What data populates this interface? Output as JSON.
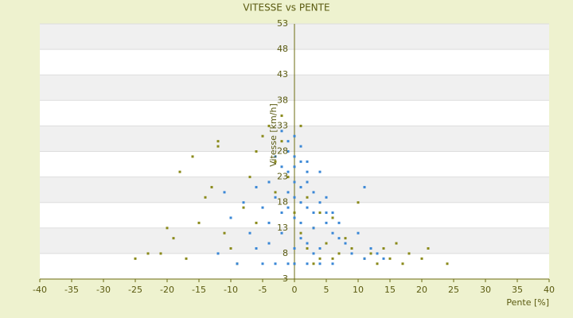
{
  "chart_data": {
    "type": "scatter",
    "title": "VITESSE vs PENTE",
    "x_label": "Pente [%]",
    "y_label": "Vitesse [km/h]",
    "xlim": [
      -40,
      40
    ],
    "xticks": [
      -40,
      -35,
      -30,
      -25,
      -20,
      -15,
      -10,
      -5,
      0,
      5,
      10,
      15,
      20,
      25,
      30,
      35,
      40
    ],
    "ylim": [
      3,
      53
    ],
    "yticks": [
      3,
      8,
      13,
      18,
      23,
      28,
      33,
      38,
      43,
      48,
      53
    ],
    "grid": true,
    "series": [
      {
        "color": "#8a8a1a",
        "x": [
          -25,
          -23,
          -19,
          -18,
          -16,
          -12,
          -13,
          -15,
          -14,
          -11,
          -10,
          -8,
          -6,
          -5,
          -4,
          -3,
          -2,
          -1,
          0,
          1,
          2,
          3,
          4,
          5,
          6,
          7,
          8,
          9,
          10,
          11,
          12,
          14,
          15,
          16,
          18,
          20,
          21,
          24,
          -17,
          -21,
          -9,
          -7,
          -3,
          0,
          3,
          6,
          -12,
          -6,
          2,
          4,
          -20,
          13,
          17,
          1,
          -2
        ],
        "values": [
          7,
          8,
          11,
          24,
          27,
          29,
          21,
          14,
          19,
          12,
          9,
          17,
          28,
          31,
          33,
          26,
          30,
          23,
          16,
          12,
          9,
          13,
          7,
          10,
          15,
          8,
          11,
          9,
          18,
          7,
          8,
          9,
          7,
          10,
          8,
          7,
          9,
          6,
          7,
          8,
          6,
          23,
          20,
          6,
          6,
          7,
          30,
          14,
          19,
          16,
          13,
          6,
          6,
          33,
          35
        ]
      },
      {
        "color": "#3a87d6",
        "x": [
          -1,
          0,
          1,
          -2,
          2,
          0,
          1,
          3,
          -1,
          4,
          2,
          5,
          0,
          -3,
          -4,
          1,
          3,
          6,
          7,
          -5,
          -6,
          2,
          0,
          4,
          8,
          -2,
          -1,
          0,
          1,
          -3,
          -8,
          -10,
          -12,
          -7,
          9,
          11,
          12,
          13,
          -9,
          -5,
          -3,
          -1,
          0,
          2,
          4,
          6,
          -4,
          3,
          1,
          2,
          -1,
          0,
          -2,
          5,
          6,
          -11,
          -6,
          10,
          14,
          4,
          -2,
          1,
          3,
          7,
          -4,
          0,
          2,
          -1,
          5,
          11
        ],
        "values": [
          28,
          27,
          26,
          25,
          24,
          22,
          21,
          20,
          20,
          18,
          17,
          16,
          15,
          19,
          22,
          14,
          13,
          12,
          11,
          17,
          21,
          10,
          9,
          9,
          10,
          12,
          30,
          31,
          29,
          27,
          18,
          15,
          8,
          12,
          8,
          7,
          9,
          8,
          6,
          6,
          6,
          6,
          6,
          6,
          6,
          6,
          10,
          16,
          18,
          22,
          24,
          25,
          16,
          14,
          16,
          20,
          9,
          12,
          7,
          24,
          32,
          11,
          8,
          14,
          14,
          19,
          26,
          17,
          19,
          21
        ]
      }
    ]
  }
}
